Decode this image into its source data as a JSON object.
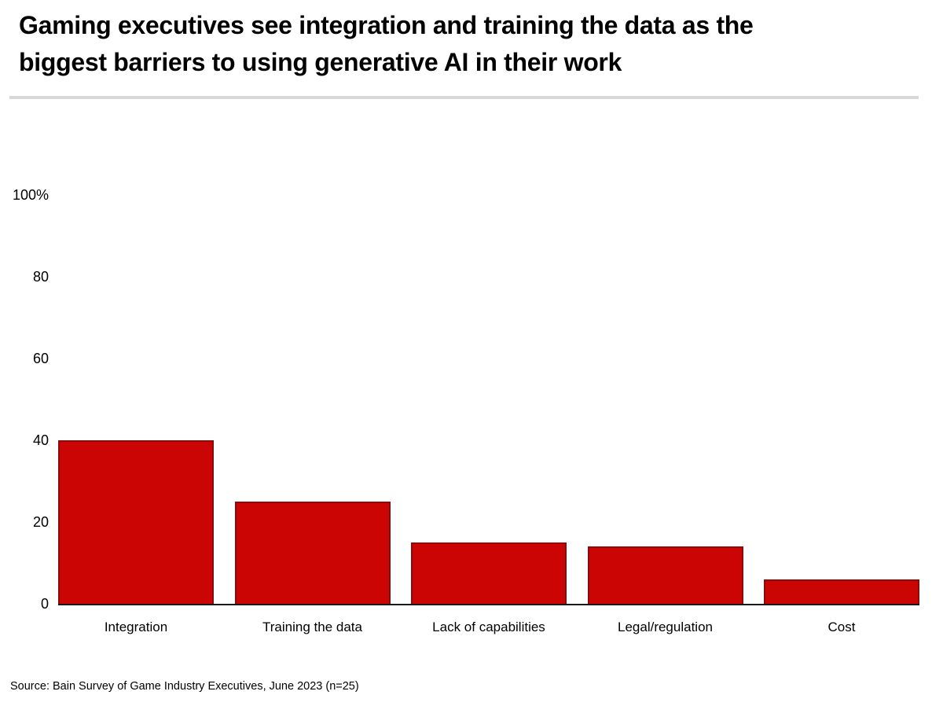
{
  "page": {
    "title_line1": "Gaming executives see integration and training the data as the",
    "title_line2": "biggest barriers to using generative AI in their work",
    "source": "Source: Bain Survey of Game Industry Executives, June 2023 (n=25)"
  },
  "colors": {
    "bar_fill": "#cb0404",
    "bar_border": "#8a0b0b",
    "axis_line": "#1a1a1a",
    "divider": "#d8d8d8",
    "text": "#000000"
  },
  "chart_data": {
    "type": "bar",
    "title": "Gaming executives see integration and training the data as the biggest barriers to using generative AI in their work",
    "categories": [
      "Integration",
      "Training the data",
      "Lack of capabilities",
      "Legal/regulation",
      "Cost"
    ],
    "values": [
      40,
      25,
      15,
      14,
      6
    ],
    "unit": "%",
    "xlabel": "",
    "ylabel": "",
    "ylim": [
      0,
      100
    ],
    "yticks": [
      {
        "value": 0,
        "label": "0"
      },
      {
        "value": 20,
        "label": "20"
      },
      {
        "value": 40,
        "label": "40"
      },
      {
        "value": 60,
        "label": "60"
      },
      {
        "value": 80,
        "label": "80"
      },
      {
        "value": 100,
        "label": "100%"
      }
    ],
    "grid": false,
    "legend": "none",
    "source": "Source: Bain Survey of Game Industry Executives, June 2023 (n=25)"
  }
}
